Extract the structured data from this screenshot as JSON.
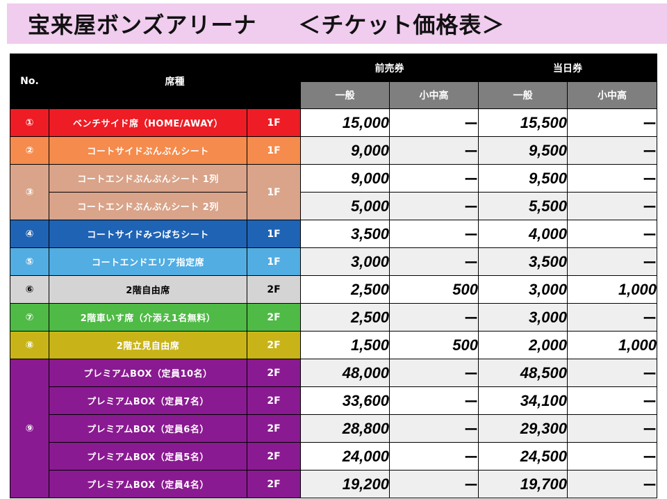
{
  "title": {
    "venue": "宝来屋ボンズアリーナ",
    "subtitle": "＜チケット価格表＞"
  },
  "header": {
    "no": "No.",
    "seat": "席種",
    "advance": "前売券",
    "sameday": "当日券",
    "general": "一般",
    "student": "小中高"
  },
  "rows": [
    {
      "no": "①",
      "seat": "ベンチサイド席（HOME/AWAY）",
      "floor": "1F",
      "adv_gen": "15,000",
      "adv_stu": "ー",
      "day_gen": "15,500",
      "day_stu": "ー",
      "color": "#ee1c24"
    },
    {
      "no": "②",
      "seat": "コートサイドぶんぶんシート",
      "floor": "1F",
      "adv_gen": "9,000",
      "adv_stu": "ー",
      "day_gen": "9,500",
      "day_stu": "ー",
      "color": "#f58b4c"
    },
    {
      "no": "③",
      "seat": "コートエンドぶんぶんシート 1列",
      "floor": "1F",
      "adv_gen": "9,000",
      "adv_stu": "ー",
      "day_gen": "9,500",
      "day_stu": "ー",
      "color": "#d9a48a"
    },
    {
      "no": "",
      "seat": "コートエンドぶんぶんシート 2列",
      "floor": "",
      "adv_gen": "5,000",
      "adv_stu": "ー",
      "day_gen": "5,500",
      "day_stu": "ー",
      "color": "#d9a48a"
    },
    {
      "no": "④",
      "seat": "コートサイドみつばちシート",
      "floor": "1F",
      "adv_gen": "3,500",
      "adv_stu": "ー",
      "day_gen": "4,000",
      "day_stu": "ー",
      "color": "#1f63b5"
    },
    {
      "no": "⑤",
      "seat": "コートエンドエリア指定席",
      "floor": "1F",
      "adv_gen": "3,000",
      "adv_stu": "ー",
      "day_gen": "3,500",
      "day_stu": "ー",
      "color": "#52ade2"
    },
    {
      "no": "⑥",
      "seat": "2階自由席",
      "floor": "2F",
      "adv_gen": "2,500",
      "adv_stu": "500",
      "day_gen": "3,000",
      "day_stu": "1,000",
      "color": "#d4d4d4"
    },
    {
      "no": "⑦",
      "seat": "2階車いす席（介添え1名無料）",
      "floor": "2F",
      "adv_gen": "2,500",
      "adv_stu": "ー",
      "day_gen": "3,000",
      "day_stu": "ー",
      "color": "#4fba46"
    },
    {
      "no": "⑧",
      "seat": "2階立見自由席",
      "floor": "2F",
      "adv_gen": "1,500",
      "adv_stu": "500",
      "day_gen": "2,000",
      "day_stu": "1,000",
      "color": "#c8b418"
    },
    {
      "no": "⑨",
      "seat": "プレミアムBOX（定員10名）",
      "floor": "2F",
      "adv_gen": "48,000",
      "adv_stu": "ー",
      "day_gen": "48,500",
      "day_stu": "ー",
      "color": "#8a1a91"
    },
    {
      "no": "",
      "seat": "プレミアムBOX（定員7名）",
      "floor": "2F",
      "adv_gen": "33,600",
      "adv_stu": "ー",
      "day_gen": "34,100",
      "day_stu": "ー",
      "color": "#8a1a91"
    },
    {
      "no": "",
      "seat": "プレミアムBOX（定員6名）",
      "floor": "2F",
      "adv_gen": "28,800",
      "adv_stu": "ー",
      "day_gen": "29,300",
      "day_stu": "ー",
      "color": "#8a1a91"
    },
    {
      "no": "",
      "seat": "プレミアムBOX（定員5名）",
      "floor": "2F",
      "adv_gen": "24,000",
      "adv_stu": "ー",
      "day_gen": "24,500",
      "day_stu": "ー",
      "color": "#8a1a91"
    },
    {
      "no": "",
      "seat": "プレミアムBOX（定員4名）",
      "floor": "2F",
      "adv_gen": "19,200",
      "adv_stu": "ー",
      "day_gen": "19,700",
      "day_stu": "ー",
      "color": "#8a1a91"
    }
  ]
}
